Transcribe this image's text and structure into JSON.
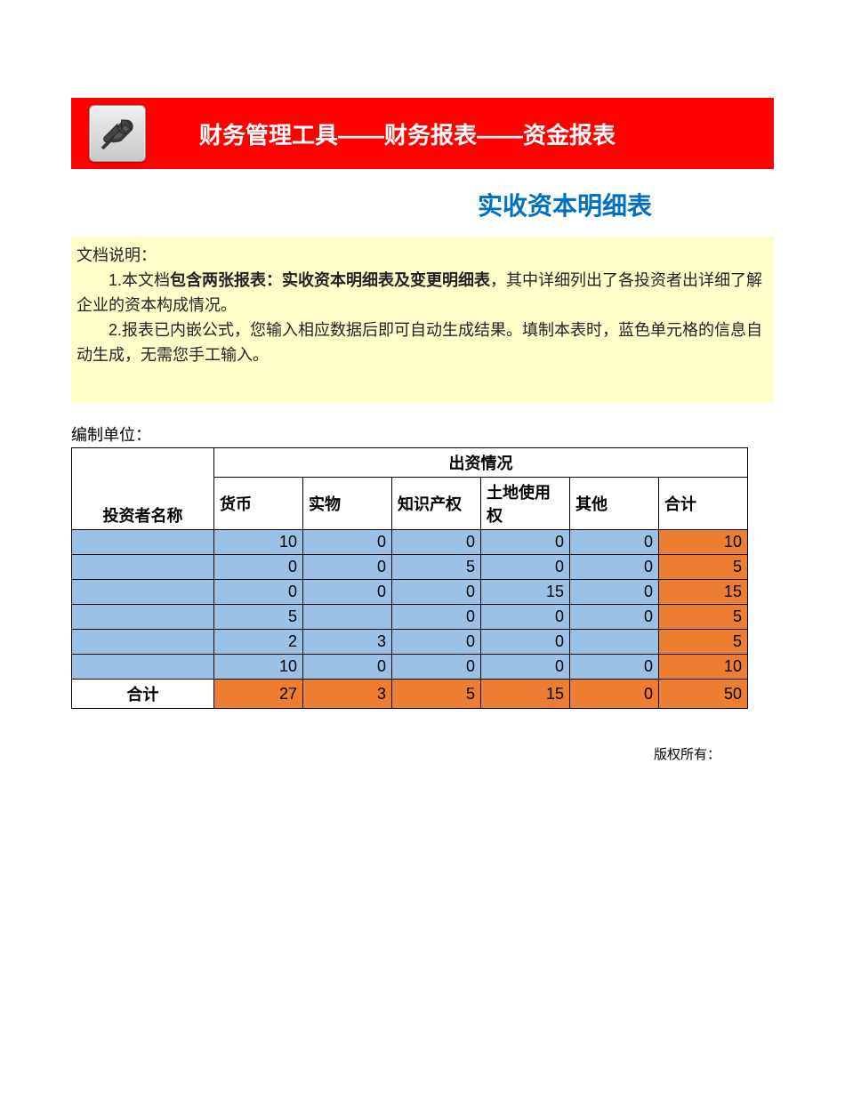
{
  "header": {
    "banner_bg": "#ff0000",
    "title": "财务管理工具——财务报表——资金报表",
    "title_color": "#ffffff",
    "title_fontsize": 26,
    "icon_name": "wrench-icon"
  },
  "subtitle": {
    "text": "实收资本明细表",
    "color": "#0070c0",
    "fontsize": 28
  },
  "description": {
    "bg": "#ffffcc",
    "label": "文档说明：",
    "line1_prefix": "　　1.本文档",
    "line1_bold": "包含两张报表：实收资本明细表及变更明细表",
    "line1_suffix": "，其中详细列出了各投资者出详细了解企业的资本构成情况。",
    "line2": "　　2.报表已内嵌公式，您输入相应数据后即可自动生成结果。填制本表时，蓝色单元格的信息自动生成，无需您手工输入。"
  },
  "unit_label": "编制单位：",
  "table": {
    "blue_bg": "#9bc2e6",
    "orange_bg": "#ed7d31",
    "border_color": "#000000",
    "header_group": "出资情况",
    "rowhead": "投资者名称",
    "columns": [
      "货币",
      "实物",
      "知识产权",
      "土地使用权",
      "其他",
      "合计"
    ],
    "rows": [
      {
        "name": "",
        "cells": [
          "10",
          "0",
          "0",
          "0",
          "0"
        ],
        "total": "10"
      },
      {
        "name": "",
        "cells": [
          "0",
          "0",
          "5",
          "0",
          "0"
        ],
        "total": "5"
      },
      {
        "name": "",
        "cells": [
          "0",
          "0",
          "0",
          "15",
          "0"
        ],
        "total": "15"
      },
      {
        "name": "",
        "cells": [
          "5",
          "",
          "0",
          "0",
          "0"
        ],
        "total": "5"
      },
      {
        "name": "",
        "cells": [
          "2",
          "3",
          "0",
          "0",
          ""
        ],
        "total": "5"
      },
      {
        "name": "",
        "cells": [
          "10",
          "0",
          "0",
          "0",
          "0"
        ],
        "total": "10"
      }
    ],
    "footer": {
      "label": "合计",
      "cells": [
        "27",
        "3",
        "5",
        "15",
        "0"
      ],
      "total": "50"
    }
  },
  "copyright": "版权所有："
}
